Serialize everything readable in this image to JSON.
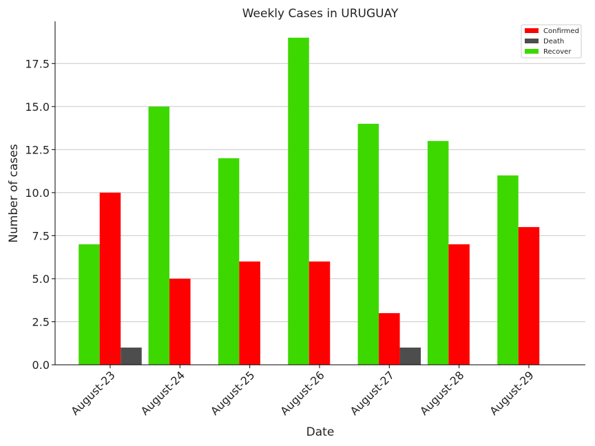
{
  "chart_data": {
    "type": "bar",
    "title": "Weekly Cases in URUGUAY",
    "xlabel": "Date",
    "ylabel": "Number of cases",
    "categories": [
      "August-23",
      "August-24",
      "August-25",
      "August-26",
      "August-27",
      "August-28",
      "August-29"
    ],
    "series": [
      {
        "name": "Recover",
        "color": "#3dd800",
        "values": [
          7,
          15,
          12,
          19,
          14,
          13,
          11
        ]
      },
      {
        "name": "Confirmed",
        "color": "#ff0000",
        "values": [
          10,
          5,
          6,
          6,
          3,
          7,
          8
        ]
      },
      {
        "name": "Death",
        "color": "#4d4d4d",
        "values": [
          1,
          0,
          0,
          0,
          1,
          0,
          0
        ]
      }
    ],
    "legend_order": [
      "Confirmed",
      "Death",
      "Recover"
    ],
    "legend_position": "top-right",
    "ylim": [
      0,
      19.95
    ],
    "yticks": [
      0,
      2.5,
      5,
      7.5,
      10,
      12.5,
      15,
      17.5
    ],
    "ytick_labels": [
      "0.0",
      "2.5",
      "5.0",
      "7.5",
      "10.0",
      "12.5",
      "15.0",
      "17.5"
    ],
    "grid": "horizontal"
  }
}
